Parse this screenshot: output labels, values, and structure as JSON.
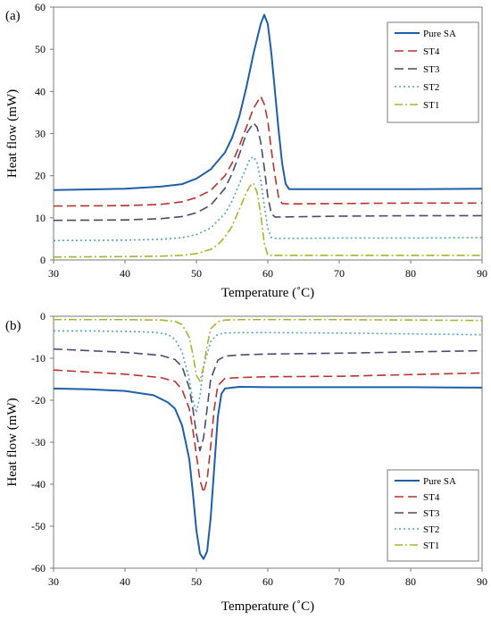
{
  "chart_data": [
    {
      "type": "line",
      "panel_label": "(a)",
      "xlabel": "Temperature (˚C)",
      "ylabel": "Heat flow (mW)",
      "xlim": [
        30,
        90
      ],
      "ylim": [
        0,
        60
      ],
      "xticks": [
        30,
        40,
        50,
        60,
        70,
        80,
        90
      ],
      "yticks": [
        0,
        10,
        20,
        30,
        40,
        50,
        60
      ],
      "legend_position": "top-right",
      "series": [
        {
          "name": "Pure SA",
          "color": "#1f5fa8",
          "dash": "solid",
          "x": [
            30,
            40,
            45,
            48,
            50,
            52,
            54,
            55,
            56,
            57,
            58,
            59,
            59.5,
            60,
            60.5,
            61,
            61.5,
            62,
            62.5,
            63,
            70,
            80,
            90
          ],
          "y": [
            16.6,
            16.9,
            17.4,
            18.0,
            19.3,
            21.5,
            25.5,
            29,
            34,
            41,
            49,
            56,
            58.2,
            56,
            49,
            40,
            31,
            23,
            18,
            16.8,
            16.8,
            16.8,
            16.9
          ]
        },
        {
          "name": "ST4",
          "color": "#b8332e",
          "dash": "dashed",
          "x": [
            30,
            40,
            45,
            48,
            50,
            52,
            54,
            55,
            56,
            57,
            58,
            59,
            59.5,
            60,
            60.5,
            61,
            61.5,
            62,
            63,
            70,
            80,
            90
          ],
          "y": [
            12.8,
            12.9,
            13.2,
            13.8,
            14.8,
            16.5,
            20,
            23,
            27,
            31.5,
            36,
            38.8,
            37,
            33,
            26,
            20,
            15,
            13.4,
            13.3,
            13.4,
            13.5,
            13.5
          ]
        },
        {
          "name": "ST3",
          "color": "#4a4a6e",
          "dash": "dashed",
          "x": [
            30,
            40,
            45,
            48,
            50,
            52,
            54,
            55,
            56,
            57,
            58,
            58.5,
            59,
            59.5,
            60,
            60.5,
            61,
            62,
            70,
            80,
            90
          ],
          "y": [
            9.4,
            9.5,
            9.8,
            10.3,
            11.2,
            13,
            17,
            20.5,
            25,
            30,
            32.5,
            31.5,
            28,
            22,
            15,
            11,
            10.2,
            10.2,
            10.4,
            10.5,
            10.5
          ]
        },
        {
          "name": "ST2",
          "color": "#4fa3c4",
          "dash": "dotted",
          "x": [
            30,
            40,
            45,
            48,
            50,
            52,
            54,
            55,
            56,
            57,
            57.5,
            58,
            58.5,
            59,
            59.5,
            60,
            60.5,
            61,
            70,
            80,
            90
          ],
          "y": [
            4.6,
            4.7,
            4.9,
            5.3,
            6.0,
            7.6,
            11,
            14,
            18,
            22,
            24,
            24.5,
            23,
            19,
            13,
            7.5,
            5.3,
            5.1,
            5.2,
            5.2,
            5.3
          ]
        },
        {
          "name": "ST1",
          "color": "#a6b52e",
          "dash": "dashdot",
          "x": [
            30,
            40,
            45,
            48,
            50,
            52,
            53,
            54,
            55,
            56,
            57,
            57.5,
            58,
            58.5,
            59,
            59.5,
            60,
            70,
            80,
            90
          ],
          "y": [
            0.7,
            0.8,
            0.9,
            1.1,
            1.5,
            2.5,
            3.6,
            5.5,
            8,
            12,
            16,
            17.5,
            18.2,
            16,
            11,
            4,
            1.1,
            1.1,
            1.1,
            1.1
          ]
        }
      ]
    },
    {
      "type": "line",
      "panel_label": "(b)",
      "xlabel": "Temperature (˚C)",
      "ylabel": "Heat flow (mW)",
      "xlim": [
        30,
        90
      ],
      "ylim": [
        -60,
        0
      ],
      "xticks": [
        30,
        40,
        50,
        60,
        70,
        80,
        90
      ],
      "yticks": [
        0,
        -10,
        -20,
        -30,
        -40,
        -50,
        -60
      ],
      "legend_position": "bottom-right",
      "series": [
        {
          "name": "Pure SA",
          "color": "#1f5fa8",
          "dash": "solid",
          "x": [
            30,
            35,
            40,
            44,
            46,
            47,
            48,
            49,
            49.5,
            50,
            50.5,
            51,
            51.5,
            52,
            52.5,
            53,
            53.5,
            54,
            56,
            60,
            70,
            80,
            90
          ],
          "y": [
            -17.2,
            -17.4,
            -17.8,
            -18.8,
            -20.5,
            -22,
            -26,
            -34,
            -42,
            -51,
            -56.5,
            -57.8,
            -56,
            -48,
            -36,
            -24,
            -18.5,
            -17.2,
            -16.8,
            -16.9,
            -16.9,
            -16.9,
            -17.0
          ]
        },
        {
          "name": "ST4",
          "color": "#b8332e",
          "dash": "dashed",
          "x": [
            30,
            35,
            40,
            45,
            47,
            48,
            49,
            49.5,
            50,
            50.5,
            51,
            51.5,
            52,
            52.5,
            53,
            54,
            56,
            60,
            70,
            80,
            90
          ],
          "y": [
            -12.8,
            -13.3,
            -13.8,
            -14.6,
            -15.5,
            -17.5,
            -22,
            -27,
            -33,
            -39,
            -42,
            -39,
            -31,
            -22,
            -16.5,
            -14.8,
            -14.6,
            -14.4,
            -14.3,
            -13.9,
            -13.5
          ]
        },
        {
          "name": "ST3",
          "color": "#4a4a6e",
          "dash": "dashed",
          "x": [
            30,
            35,
            40,
            45,
            47,
            48,
            49,
            49.5,
            50,
            50.5,
            51,
            51.5,
            52,
            53,
            54,
            56,
            60,
            70,
            80,
            90
          ],
          "y": [
            -7.8,
            -8.2,
            -8.6,
            -9.3,
            -10.3,
            -12,
            -17,
            -22,
            -28,
            -32,
            -29,
            -22,
            -15,
            -10.5,
            -9.5,
            -9.2,
            -9.0,
            -8.8,
            -8.5,
            -8.2
          ]
        },
        {
          "name": "ST2",
          "color": "#4fa3c4",
          "dash": "dotted",
          "x": [
            30,
            35,
            40,
            44,
            46,
            47,
            48,
            49,
            49.5,
            50,
            50.5,
            51,
            52,
            53,
            54,
            56,
            60,
            70,
            80,
            90
          ],
          "y": [
            -3.5,
            -3.5,
            -3.6,
            -3.8,
            -4.3,
            -5.5,
            -8.5,
            -15,
            -20,
            -23,
            -19,
            -12,
            -6,
            -4.3,
            -4.0,
            -3.9,
            -3.9,
            -4.0,
            -4.2,
            -4.4
          ]
        },
        {
          "name": "ST1",
          "color": "#a6b52e",
          "dash": "dashdot",
          "x": [
            30,
            35,
            40,
            45,
            47,
            48,
            49,
            49.5,
            50,
            50.5,
            51,
            51.5,
            52,
            53,
            54,
            56,
            60,
            70,
            80,
            90
          ],
          "y": [
            -0.8,
            -0.8,
            -0.8,
            -0.9,
            -1.2,
            -2,
            -5,
            -9,
            -14,
            -15.5,
            -12,
            -7,
            -3,
            -1.3,
            -0.9,
            -0.8,
            -0.8,
            -0.8,
            -0.9,
            -1.0
          ]
        }
      ]
    }
  ]
}
